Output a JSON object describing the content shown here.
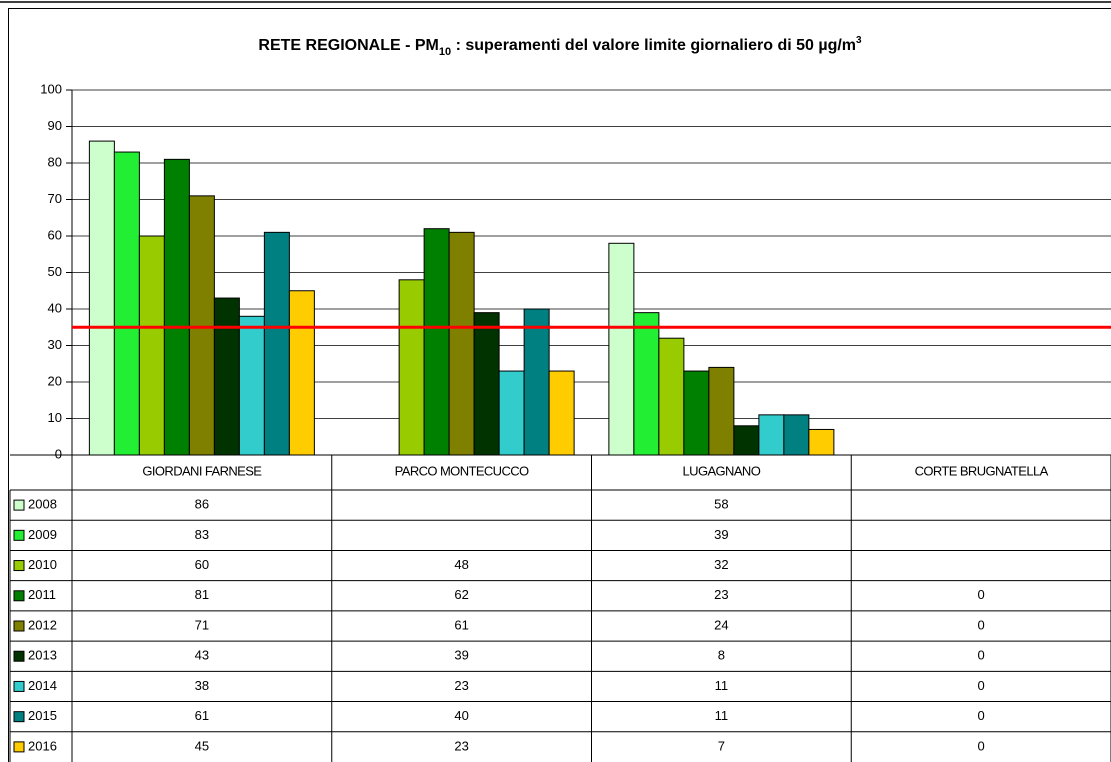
{
  "chart_data": {
    "type": "bar",
    "title": [
      "RETE REGIONALE - PM",
      "10",
      " : superamenti del valore limite giornaliero di 50 µg/m",
      "3"
    ],
    "categories": [
      "GIORDANI FARNESE",
      "PARCO MONTECUCCO",
      "LUGAGNANO",
      "CORTE BRUGNATELLA"
    ],
    "series": [
      {
        "name": "2008",
        "color": "#ccffcc",
        "values": [
          86,
          null,
          58,
          null
        ]
      },
      {
        "name": "2009",
        "color": "#22ee33",
        "values": [
          83,
          null,
          39,
          null
        ]
      },
      {
        "name": "2010",
        "color": "#99cc00",
        "values": [
          60,
          48,
          32,
          null
        ]
      },
      {
        "name": "2011",
        "color": "#008000",
        "values": [
          81,
          62,
          23,
          0
        ]
      },
      {
        "name": "2012",
        "color": "#808000",
        "values": [
          71,
          61,
          24,
          0
        ]
      },
      {
        "name": "2013",
        "color": "#003300",
        "values": [
          43,
          39,
          8,
          0
        ]
      },
      {
        "name": "2014",
        "color": "#33cccc",
        "values": [
          38,
          23,
          11,
          0
        ]
      },
      {
        "name": "2015",
        "color": "#008080",
        "values": [
          61,
          40,
          11,
          0
        ]
      },
      {
        "name": "2016",
        "color": "#ffcc00",
        "values": [
          45,
          23,
          7,
          0
        ]
      }
    ],
    "reference_line": {
      "value": 35,
      "color": "#ff0000"
    },
    "ylim": [
      0,
      100
    ],
    "yticks": [
      0,
      10,
      20,
      30,
      40,
      50,
      60,
      70,
      80,
      90,
      100
    ],
    "grid": true
  }
}
